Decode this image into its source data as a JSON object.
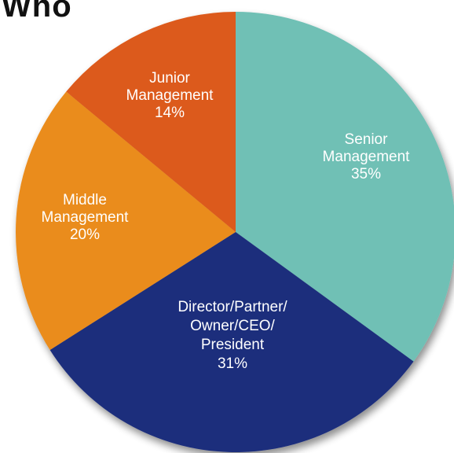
{
  "title": "Who",
  "chart_data": {
    "type": "pie",
    "title": "Who",
    "slices": [
      {
        "name": "Senior Management",
        "lines": [
          "Senior",
          "Management",
          "35%"
        ],
        "value": 35,
        "color": "#6fc0b5"
      },
      {
        "name": "Director/Partner/Owner/CEO/President",
        "lines": [
          "Director/Partner/",
          "Owner/CEO/",
          "President",
          "31%"
        ],
        "value": 31,
        "color": "#1f2f7c"
      },
      {
        "name": "Middle Management",
        "lines": [
          "Middle",
          "Management",
          "20%"
        ],
        "value": 20,
        "color": "#ea8c1c"
      },
      {
        "name": "Junior Management",
        "lines": [
          "Junior",
          "Management",
          "14%"
        ],
        "value": 14,
        "color": "#dc5a1a"
      }
    ]
  }
}
